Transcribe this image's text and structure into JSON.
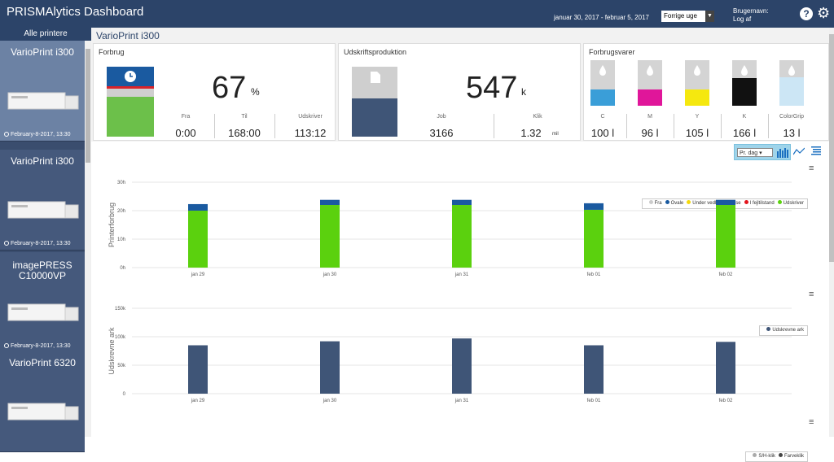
{
  "header": {
    "title": "PRISMAlytics Dashboard",
    "date_range": "januar 30, 2017 - februar 5, 2017",
    "period_select": "Forrige uge",
    "user_label": "Brugernavn:",
    "logout": "Log af"
  },
  "sidebar": {
    "heading": "Alle printere",
    "printers": [
      {
        "name": "VarioPrint i300",
        "date": "February-8-2017, 13:30",
        "active": true
      },
      {
        "name": "VarioPrint i300",
        "date": "February-8-2017, 13:30",
        "active": false
      },
      {
        "name": "imagePRESS C10000VP",
        "date": "February-8-2017, 13:30",
        "active": false
      },
      {
        "name": "VarioPrint 6320",
        "date": "",
        "active": false
      }
    ]
  },
  "main": {
    "title": "VarioPrint i300"
  },
  "usage": {
    "title": "Forbrug",
    "value": "67",
    "unit": "%",
    "fra_label": "Fra",
    "fra": "0:00",
    "til_label": "Til",
    "til": "168:00",
    "udskriver_label": "Udskriver",
    "udskriver": "113:12",
    "level": 0.67
  },
  "production": {
    "title": "Udskriftsproduktion",
    "value": "547",
    "unit": "k",
    "job_label": "Job",
    "job": "3166",
    "klik_label": "Klik",
    "klik": "1.32",
    "klik_unit": "mil",
    "level": 0.55
  },
  "consumables": {
    "title": "Forbrugsvarer",
    "items": [
      {
        "label": "C",
        "value": "100 l",
        "color": "#3a9ed8",
        "level": 0.45
      },
      {
        "label": "M",
        "value": "96 l",
        "color": "#e0169a",
        "level": 0.45
      },
      {
        "label": "Y",
        "value": "105 l",
        "color": "#f5e80f",
        "level": 0.45
      },
      {
        "label": "K",
        "value": "166 l",
        "color": "#111111",
        "level": 0.75
      },
      {
        "label": "ColorGrip",
        "value": "13 l",
        "color": "#cce6f5",
        "level": 0.78
      }
    ]
  },
  "toolbar": {
    "interval": "Pr. dag"
  },
  "chart_data": [
    {
      "type": "bar",
      "stacked": true,
      "categories": [
        "jan 29",
        "jan 30",
        "jan 31",
        "feb 01",
        "feb 02"
      ],
      "ylabel": "Printerforbrug",
      "yticks": [
        "0h",
        "10h",
        "20h",
        "30h"
      ],
      "ylim": [
        0,
        30
      ],
      "series": [
        {
          "name": "Fra",
          "values": [
            0,
            0,
            0,
            0,
            0
          ],
          "color": "#cccccc"
        },
        {
          "name": "Ovale",
          "values": [
            2.3,
            1.8,
            1.8,
            2.3,
            1.8
          ],
          "color": "#1a5aa0"
        },
        {
          "name": "Under vedligeholdelse",
          "values": [
            0,
            0,
            0,
            0,
            0
          ],
          "color": "#f5d90a"
        },
        {
          "name": "I fejltilstand",
          "values": [
            0,
            0,
            0,
            0,
            0
          ],
          "color": "#e3141c"
        },
        {
          "name": "Udskriver",
          "values": [
            20,
            22,
            22,
            20.3,
            22
          ],
          "color": "#5bd10e"
        }
      ],
      "legend_position": "top-right"
    },
    {
      "type": "bar",
      "categories": [
        "jan 29",
        "jan 30",
        "jan 31",
        "feb 01",
        "feb 02"
      ],
      "ylabel": "Udskrevne ark",
      "yticks": [
        "0",
        "50k",
        "100k",
        "150k"
      ],
      "ylim": [
        0,
        150000
      ],
      "series": [
        {
          "name": "Udskrevne ark",
          "values": [
            85000,
            92000,
            97000,
            85000,
            91000
          ],
          "color": "#3f5577"
        }
      ],
      "legend_position": "top-right"
    },
    {
      "type": "bar",
      "series": [
        {
          "name": "S/H-klik",
          "values": [],
          "color": "#aaaaaa"
        },
        {
          "name": "Farveklik",
          "values": [],
          "color": "#444444"
        }
      ],
      "legend_position": "top-right"
    }
  ]
}
